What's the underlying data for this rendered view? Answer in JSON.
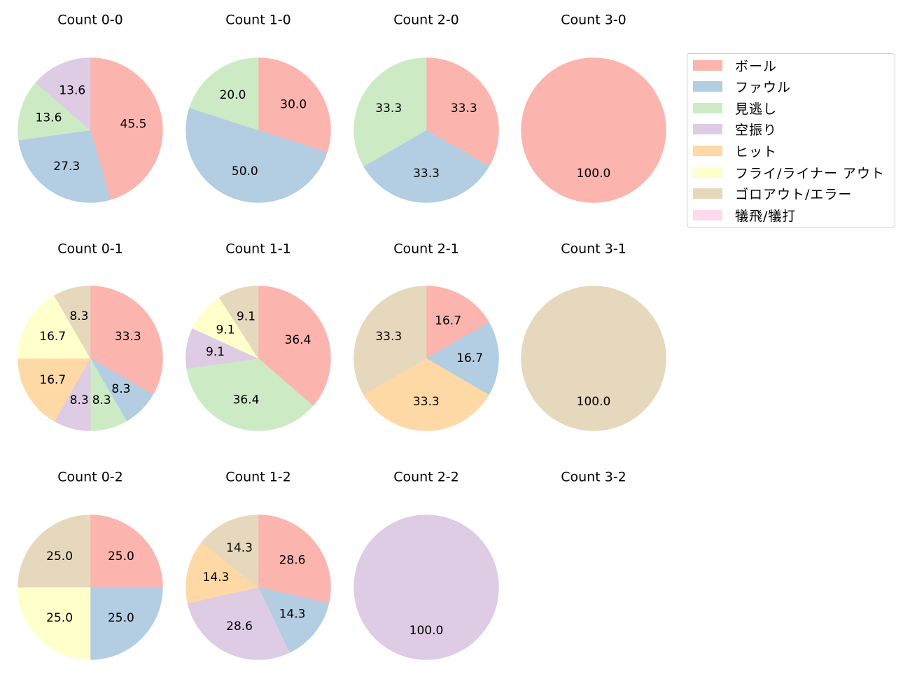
{
  "chart_data": {
    "type": "pie",
    "title": "",
    "legend": {
      "position": "upper right (outside grid)",
      "entries": [
        {
          "label": "ボール",
          "color": "#fbb4ae"
        },
        {
          "label": "ファウル",
          "color": "#b3cde3"
        },
        {
          "label": "見逃し",
          "color": "#ccebc5"
        },
        {
          "label": "空振り",
          "color": "#decbe4"
        },
        {
          "label": "ヒット",
          "color": "#fed9a6"
        },
        {
          "label": "フライ/ライナー アウト",
          "color": "#ffffcc"
        },
        {
          "label": "ゴロアウト/エラー",
          "color": "#e5d8bd"
        },
        {
          "label": "犠飛/犠打",
          "color": "#fddaec"
        }
      ]
    },
    "start_angle": 90,
    "direction": "clockwise",
    "value_format": "%.1f",
    "charts": [
      {
        "title": "Count 0-0",
        "row": 0,
        "col": 0,
        "slices": [
          {
            "category": "ボール",
            "value": 45.5
          },
          {
            "category": "ファウル",
            "value": 27.3
          },
          {
            "category": "見逃し",
            "value": 13.6
          },
          {
            "category": "空振り",
            "value": 13.6
          }
        ]
      },
      {
        "title": "Count 1-0",
        "row": 0,
        "col": 1,
        "slices": [
          {
            "category": "ボール",
            "value": 30.0
          },
          {
            "category": "ファウル",
            "value": 50.0
          },
          {
            "category": "見逃し",
            "value": 20.0
          }
        ]
      },
      {
        "title": "Count 2-0",
        "row": 0,
        "col": 2,
        "slices": [
          {
            "category": "ボール",
            "value": 33.3
          },
          {
            "category": "ファウル",
            "value": 33.3
          },
          {
            "category": "見逃し",
            "value": 33.3
          }
        ]
      },
      {
        "title": "Count 3-0",
        "row": 0,
        "col": 3,
        "slices": [
          {
            "category": "ボール",
            "value": 100.0
          }
        ]
      },
      {
        "title": "Count 0-1",
        "row": 1,
        "col": 0,
        "slices": [
          {
            "category": "ボール",
            "value": 33.3
          },
          {
            "category": "ファウル",
            "value": 8.3
          },
          {
            "category": "見逃し",
            "value": 8.3
          },
          {
            "category": "空振り",
            "value": 8.3
          },
          {
            "category": "ヒット",
            "value": 16.7
          },
          {
            "category": "フライ/ライナー アウト",
            "value": 16.7
          },
          {
            "category": "ゴロアウト/エラー",
            "value": 8.3
          }
        ]
      },
      {
        "title": "Count 1-1",
        "row": 1,
        "col": 1,
        "slices": [
          {
            "category": "ボール",
            "value": 36.4
          },
          {
            "category": "見逃し",
            "value": 36.4
          },
          {
            "category": "空振り",
            "value": 9.1
          },
          {
            "category": "フライ/ライナー アウト",
            "value": 9.1
          },
          {
            "category": "ゴロアウト/エラー",
            "value": 9.1
          }
        ]
      },
      {
        "title": "Count 2-1",
        "row": 1,
        "col": 2,
        "slices": [
          {
            "category": "ボール",
            "value": 16.7
          },
          {
            "category": "ファウル",
            "value": 16.7
          },
          {
            "category": "ヒット",
            "value": 33.3
          },
          {
            "category": "ゴロアウト/エラー",
            "value": 33.3
          }
        ]
      },
      {
        "title": "Count 3-1",
        "row": 1,
        "col": 3,
        "slices": [
          {
            "category": "ゴロアウト/エラー",
            "value": 100.0
          }
        ]
      },
      {
        "title": "Count 0-2",
        "row": 2,
        "col": 0,
        "slices": [
          {
            "category": "ボール",
            "value": 25.0
          },
          {
            "category": "ファウル",
            "value": 25.0
          },
          {
            "category": "フライ/ライナー アウト",
            "value": 25.0
          },
          {
            "category": "ゴロアウト/エラー",
            "value": 25.0
          }
        ]
      },
      {
        "title": "Count 1-2",
        "row": 2,
        "col": 1,
        "slices": [
          {
            "category": "ボール",
            "value": 28.6
          },
          {
            "category": "ファウル",
            "value": 14.3
          },
          {
            "category": "空振り",
            "value": 28.6
          },
          {
            "category": "ヒット",
            "value": 14.3
          },
          {
            "category": "ゴロアウト/エラー",
            "value": 14.3
          }
        ]
      },
      {
        "title": "Count 2-2",
        "row": 2,
        "col": 2,
        "slices": [
          {
            "category": "空振り",
            "value": 100.0
          }
        ]
      },
      {
        "title": "Count 3-2",
        "row": 2,
        "col": 3,
        "slices": []
      }
    ]
  }
}
